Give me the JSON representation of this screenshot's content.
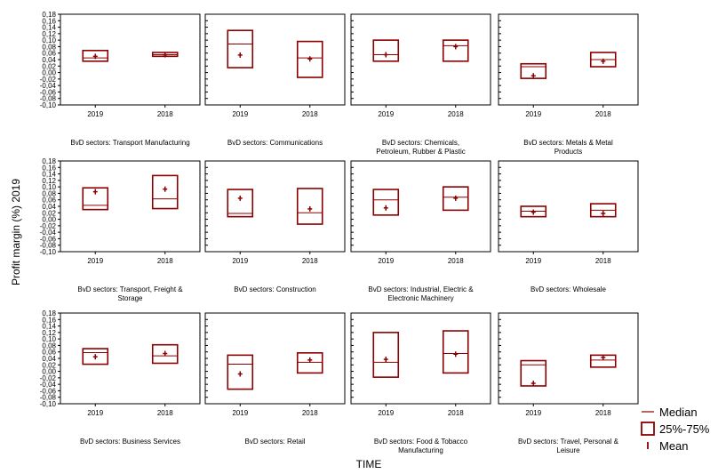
{
  "chart_data": {
    "type": "box",
    "ylabel": "Profit margin (%) 2019",
    "xlabel": "TIME",
    "ylim": [
      -0.1,
      0.18
    ],
    "yticks": [
      -0.1,
      -0.08,
      -0.06,
      -0.04,
      -0.02,
      0.0,
      0.02,
      0.04,
      0.06,
      0.08,
      0.1,
      0.12,
      0.14,
      0.16,
      0.18
    ],
    "ytick_labels": [
      "-0,10",
      "-0,08",
      "-0,06",
      "-0,04",
      "-0,02",
      "0,00",
      "0,02",
      "0,04",
      "0,06",
      "0,08",
      "0,10",
      "0,12",
      "0,14",
      "0,16",
      "0,18"
    ],
    "categories": [
      "2019",
      "2018"
    ],
    "box_color": "#8b0000",
    "legend": {
      "position": "bottom-right",
      "items": [
        {
          "label": "Median",
          "marker": "line"
        },
        {
          "label": "25%-75%",
          "marker": "box"
        },
        {
          "label": "Mean",
          "marker": "tick"
        }
      ]
    },
    "panels": [
      {
        "title_lines": [
          "BvD sectors: Transport Manufacturing"
        ],
        "boxes": [
          {
            "q1": 0.035,
            "median": 0.045,
            "q3": 0.068,
            "mean": 0.05
          },
          {
            "q1": 0.05,
            "median": 0.055,
            "q3": 0.062,
            "mean": 0.055
          }
        ]
      },
      {
        "title_lines": [
          "BvD sectors: Communications"
        ],
        "boxes": [
          {
            "q1": 0.015,
            "median": 0.088,
            "q3": 0.13,
            "mean": 0.054
          },
          {
            "q1": -0.015,
            "median": 0.045,
            "q3": 0.096,
            "mean": 0.042
          }
        ]
      },
      {
        "title_lines": [
          "BvD sectors: Chemicals,",
          "Petroleum, Rubber & Plastic"
        ],
        "boxes": [
          {
            "q1": 0.035,
            "median": 0.055,
            "q3": 0.1,
            "mean": 0.055
          },
          {
            "q1": 0.035,
            "median": 0.083,
            "q3": 0.1,
            "mean": 0.08
          }
        ]
      },
      {
        "title_lines": [
          "BvD sectors: Metals & Metal",
          "Products"
        ],
        "boxes": [
          {
            "q1": -0.018,
            "median": 0.018,
            "q3": 0.027,
            "mean": -0.01
          },
          {
            "q1": 0.018,
            "median": 0.04,
            "q3": 0.062,
            "mean": 0.035
          }
        ]
      },
      {
        "title_lines": [
          "BvD sectors: Transport, Freight &",
          "Storage"
        ],
        "boxes": [
          {
            "q1": 0.03,
            "median": 0.043,
            "q3": 0.097,
            "mean": 0.085
          },
          {
            "q1": 0.033,
            "median": 0.063,
            "q3": 0.135,
            "mean": 0.093
          }
        ]
      },
      {
        "title_lines": [
          "BvD sectors: Construction"
        ],
        "boxes": [
          {
            "q1": 0.008,
            "median": 0.018,
            "q3": 0.092,
            "mean": 0.065
          },
          {
            "q1": -0.015,
            "median": 0.02,
            "q3": 0.095,
            "mean": 0.032
          }
        ]
      },
      {
        "title_lines": [
          "BvD sectors: Industrial, Electric &",
          "Electronic Machinery"
        ],
        "boxes": [
          {
            "q1": 0.013,
            "median": 0.06,
            "q3": 0.092,
            "mean": 0.035
          },
          {
            "q1": 0.028,
            "median": 0.068,
            "q3": 0.1,
            "mean": 0.065
          }
        ]
      },
      {
        "title_lines": [
          "BvD sectors: Wholesale"
        ],
        "boxes": [
          {
            "q1": 0.008,
            "median": 0.025,
            "q3": 0.04,
            "mean": 0.022
          },
          {
            "q1": 0.008,
            "median": 0.028,
            "q3": 0.048,
            "mean": 0.018
          }
        ]
      },
      {
        "title_lines": [
          "BvD sectors: Business Services"
        ],
        "boxes": [
          {
            "q1": 0.022,
            "median": 0.058,
            "q3": 0.07,
            "mean": 0.045
          },
          {
            "q1": 0.025,
            "median": 0.048,
            "q3": 0.082,
            "mean": 0.055
          }
        ]
      },
      {
        "title_lines": [
          "BvD sectors: Retail"
        ],
        "boxes": [
          {
            "q1": -0.055,
            "median": 0.022,
            "q3": 0.05,
            "mean": -0.008
          },
          {
            "q1": -0.005,
            "median": 0.028,
            "q3": 0.057,
            "mean": 0.035
          }
        ]
      },
      {
        "title_lines": [
          "BvD sectors: Food & Tobacco",
          "Manufacturing"
        ],
        "boxes": [
          {
            "q1": -0.018,
            "median": 0.028,
            "q3": 0.12,
            "mean": 0.037
          },
          {
            "q1": -0.005,
            "median": 0.055,
            "q3": 0.125,
            "mean": 0.053
          }
        ]
      },
      {
        "title_lines": [
          "BvD sectors: Travel, Personal &",
          "Leisure"
        ],
        "boxes": [
          {
            "q1": -0.045,
            "median": 0.02,
            "q3": 0.033,
            "mean": -0.037
          },
          {
            "q1": 0.013,
            "median": 0.035,
            "q3": 0.05,
            "mean": 0.043
          }
        ]
      }
    ]
  }
}
